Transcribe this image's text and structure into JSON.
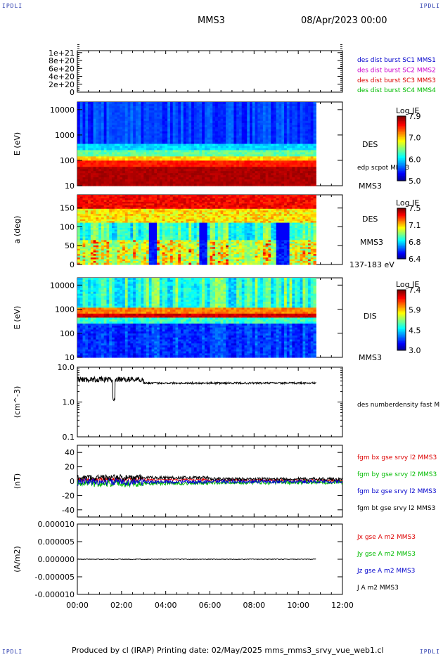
{
  "corners": {
    "tl": "IPDLI",
    "tr": "IPDLI",
    "bl": "IPDLI",
    "br": "IPDLI"
  },
  "header": {
    "spacecraft": "MMS3",
    "date": "08/Apr/2023 00:00"
  },
  "footer": {
    "text": "Produced by cl (IRAP)   Printing date: 02/May/2025   mms_mms3_srvy_vue_web1.cl"
  },
  "colors": {
    "red": "#dd0000",
    "magenta": "#cc00cc",
    "blue": "#0000cc",
    "green": "#00bb00",
    "black": "#000000"
  },
  "chart_data": {
    "type": "stacked-panels",
    "x_axis": {
      "ticks": [
        "00:00",
        "02:00",
        "04:00",
        "06:00",
        "08:00",
        "10:00",
        "12:00"
      ],
      "range_hours": [
        0,
        12
      ],
      "data_end_hours": 10.8
    },
    "panels": [
      {
        "id": "dist-burst",
        "type": "line",
        "ytick_labels": [
          "1e+21",
          "8e+20",
          "6e+20",
          "4e+20",
          "2e+20",
          "0"
        ],
        "ytick_values": [
          1e+21,
          8e+20,
          6e+20,
          4e+20,
          2e+20,
          0
        ],
        "legend": [
          {
            "label": "des dist burst SC1 MMS1",
            "color": "#0000cc"
          },
          {
            "label": "des dist burst SC2 MMS2",
            "color": "#cc00cc"
          },
          {
            "label": "des dist burst SC3 MMS3",
            "color": "#dd0000"
          },
          {
            "label": "des dist burst SC4 MMS4",
            "color": "#00bb00"
          }
        ]
      },
      {
        "id": "des-energy",
        "type": "heatmap",
        "ylabel": "E (eV)",
        "ytick_labels": [
          "10000",
          "1000",
          "100",
          "10"
        ],
        "ylog_range": [
          10,
          20000
        ],
        "side_labels": [
          "DES",
          "edp scpot MMS3",
          "MMS3"
        ],
        "colorbar": {
          "title": "Log JE",
          "ticks": [
            "7.9",
            "7.0",
            "6.0",
            "5.0"
          ],
          "range": [
            5.0,
            7.9
          ]
        }
      },
      {
        "id": "des-pitch",
        "type": "heatmap",
        "ylabel": "a (deg)",
        "ytick_labels": [
          "150",
          "100",
          "50",
          "0"
        ],
        "ylim": [
          0,
          180
        ],
        "side_labels": [
          "DES",
          "MMS3",
          "137-183 eV"
        ],
        "colorbar": {
          "title": "Log JE",
          "ticks": [
            "7.5",
            "7.1",
            "6.8",
            "6.4"
          ],
          "range": [
            6.4,
            7.5
          ]
        }
      },
      {
        "id": "dis-energy",
        "type": "heatmap",
        "ylabel": "E (eV)",
        "ytick_labels": [
          "10000",
          "1000",
          "100",
          "10"
        ],
        "ylog_range": [
          10,
          20000
        ],
        "side_labels": [
          "DIS",
          "MMS3"
        ],
        "colorbar": {
          "title": "Log JE",
          "ticks": [
            "7.4",
            "5.9",
            "4.5",
            "3.0"
          ],
          "range": [
            3.0,
            7.4
          ]
        }
      },
      {
        "id": "density",
        "type": "line",
        "ylabel": "(cm^-3)",
        "ytick_labels": [
          "10.0",
          "1.0",
          "0.1"
        ],
        "ylog_range": [
          0.1,
          10
        ],
        "legend": [
          {
            "label": "des numberdensity fast M",
            "color": "#000000"
          }
        ],
        "series_summary": {
          "early_mean": 4.5,
          "late_mean": 3.5,
          "dip_at_hours": 1.65,
          "dip_value": 1.0
        }
      },
      {
        "id": "fgm",
        "type": "line",
        "ylabel": "(nT)",
        "ytick_labels": [
          "40",
          "20",
          "0",
          "-20",
          "-40"
        ],
        "ylim": [
          -50,
          50
        ],
        "legend": [
          {
            "label": "fgm bx gse srvy l2 MMS3",
            "color": "#dd0000"
          },
          {
            "label": "fgm by gse srvy l2 MMS3",
            "color": "#00bb00"
          },
          {
            "label": "fgm bz gse srvy l2 MMS3",
            "color": "#0000cc"
          },
          {
            "label": "fgm bt gse srvy l2 MMS3",
            "color": "#000000"
          }
        ]
      },
      {
        "id": "current",
        "type": "line",
        "ylabel": "(A/m2)",
        "ytick_labels": [
          "0.000010",
          "0.000005",
          "0.000000",
          "-0.000005",
          "-0.000010"
        ],
        "ylim": [
          -1e-05,
          1e-05
        ],
        "legend": [
          {
            "label": "Jx gse A m2 MMS3",
            "color": "#dd0000"
          },
          {
            "label": "Jy gse A m2 MMS3",
            "color": "#00bb00"
          },
          {
            "label": "Jz gse A m2 MMS3",
            "color": "#0000cc"
          },
          {
            "label": "J A m2 MMS3",
            "color": "#000000"
          }
        ]
      }
    ]
  }
}
